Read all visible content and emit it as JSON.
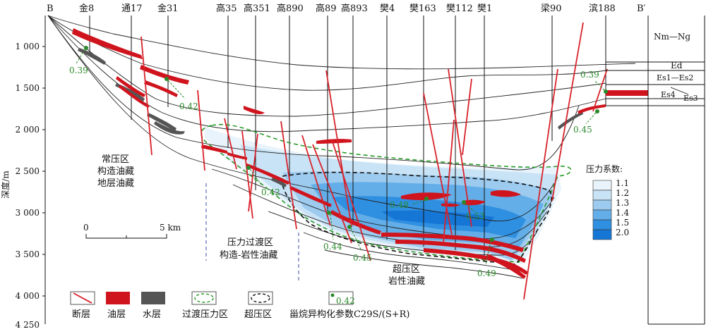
{
  "section": {
    "left_end": "B",
    "right_end": "B′",
    "wells": [
      "金8",
      "通17",
      "金31",
      "高35",
      "高351",
      "高890",
      "高89",
      "高893",
      "樊4",
      "樊163",
      "樊112",
      "樊1",
      "梁90",
      "滨188"
    ]
  },
  "depth_axis": {
    "label": "深度/m",
    "ticks": [
      "1 000",
      "1 500",
      "2 000",
      "2 500",
      "3 000",
      "3 500",
      "4 000",
      "4 250"
    ]
  },
  "stratigraphy": {
    "units": [
      "Nm—Ng",
      "Ed",
      "Es1—Es2",
      "Es4",
      "Es3"
    ]
  },
  "zones": {
    "normal": [
      "常压区",
      "构造油藏",
      "地层油藏"
    ],
    "transition": [
      "压力过渡区",
      "构造-岩性油藏"
    ],
    "over": [
      "超压区",
      "岩性油藏"
    ]
  },
  "ratios": [
    "0.39",
    "0.42",
    "0.42",
    "0.44",
    "0.45",
    "0.48",
    "0.53",
    "0.49",
    "0.39",
    "0.45"
  ],
  "scale_bar": {
    "start": "0",
    "end": "5 km"
  },
  "pressure_legend": {
    "title": "压力系数:",
    "items": [
      {
        "label": "1.1",
        "color": "#e8f3fb"
      },
      {
        "label": "1.2",
        "color": "#c9e3f6"
      },
      {
        "label": "1.3",
        "color": "#9ccbef"
      },
      {
        "label": "1.4",
        "color": "#63aee8"
      },
      {
        "label": "1.5",
        "color": "#2f8fe0"
      },
      {
        "label": "2.0",
        "color": "#1676d6"
      }
    ]
  },
  "legend": {
    "fault": "断层",
    "oil": "油层",
    "water": "水层",
    "transition": "过渡压力区",
    "overpressure": "超压区",
    "sterane": "甾烷异构化参数C29S/(S+R)",
    "sample_value": "0.42"
  },
  "colors": {
    "fault": "#d8222a",
    "oil": "#d0141e",
    "water": "#555555",
    "ratio": "#2a8a2a",
    "transition": "#2a9a2a"
  }
}
